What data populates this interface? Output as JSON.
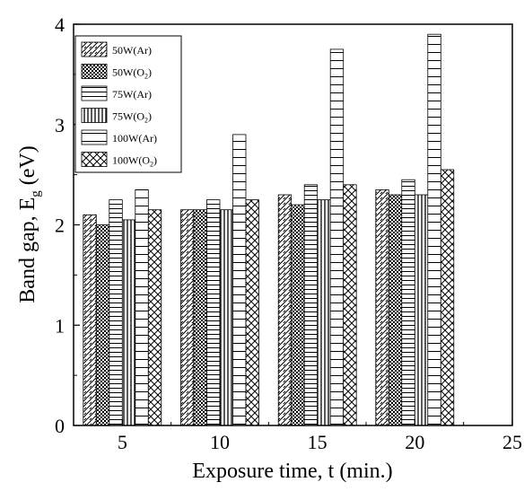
{
  "chart_data": {
    "type": "bar",
    "xlabel": "Exposure time, t (min.)",
    "ylabel": {
      "main": "Band gap, E",
      "sub": "g",
      "unit": " (eV)"
    },
    "categories": [
      "5",
      "10",
      "15",
      "20"
    ],
    "x_values": [
      5,
      10,
      15,
      20
    ],
    "xlim": [
      2.5,
      25
    ],
    "ylim": [
      0,
      4
    ],
    "x_ticks": [
      "5",
      "10",
      "15",
      "20",
      "25"
    ],
    "y_ticks": [
      "0",
      "1",
      "2",
      "3",
      "4"
    ],
    "grid": false,
    "legend_position": "top-left",
    "series": [
      {
        "name": "50W(Ar)",
        "label": {
          "main": "50W(Ar)",
          "sub": "",
          "tail": ""
        },
        "pattern": "diagonal",
        "values": [
          2.1,
          2.15,
          2.3,
          2.35
        ]
      },
      {
        "name": "50W(O2)",
        "label": {
          "main": "50W(O",
          "sub": "2",
          "tail": ")"
        },
        "pattern": "dots",
        "values": [
          2.0,
          2.15,
          2.2,
          2.3
        ]
      },
      {
        "name": "75W(Ar)",
        "label": {
          "main": "75W(Ar)",
          "sub": "",
          "tail": ""
        },
        "pattern": "horizontal",
        "values": [
          2.25,
          2.25,
          2.4,
          2.45
        ]
      },
      {
        "name": "75W(O2)",
        "label": {
          "main": "75W(O",
          "sub": "2",
          "tail": ")"
        },
        "pattern": "vertical",
        "values": [
          2.05,
          2.15,
          2.25,
          2.3
        ]
      },
      {
        "name": "100W(Ar)",
        "label": {
          "main": "100W(Ar)",
          "sub": "",
          "tail": ""
        },
        "pattern": "horizontal-wide",
        "values": [
          2.35,
          2.9,
          3.75,
          3.9
        ]
      },
      {
        "name": "100W(O2)",
        "label": {
          "main": "100W(O",
          "sub": "2",
          "tail": ")"
        },
        "pattern": "crosshatch",
        "values": [
          2.15,
          2.25,
          2.4,
          2.55
        ]
      }
    ]
  }
}
